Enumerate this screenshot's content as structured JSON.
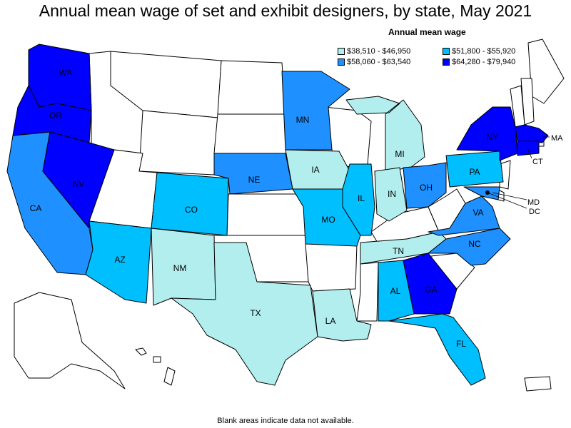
{
  "title": "Annual mean wage of set and exhibit designers, by state, May 2021",
  "legend": {
    "title": "Annual mean wage",
    "bins": [
      {
        "label": "$38,510 - $46,950",
        "color": "#b2eeee"
      },
      {
        "label": "$51,800 - $55,920",
        "color": "#00bfff"
      },
      {
        "label": "$58,060 - $63,540",
        "color": "#1e90ff"
      },
      {
        "label": "$64,280 - $79,940",
        "color": "#0000ff"
      }
    ]
  },
  "footnote": "Blank areas indicate data not available.",
  "states": [
    {
      "code": "WA",
      "bin": 3
    },
    {
      "code": "OR",
      "bin": 3
    },
    {
      "code": "NV",
      "bin": 3
    },
    {
      "code": "NY",
      "bin": 3
    },
    {
      "code": "MA",
      "bin": 3
    },
    {
      "code": "GA",
      "bin": 3
    },
    {
      "code": "CT",
      "bin": 3
    },
    {
      "code": "CA",
      "bin": 2
    },
    {
      "code": "MN",
      "bin": 2
    },
    {
      "code": "NE",
      "bin": 2
    },
    {
      "code": "OH",
      "bin": 2
    },
    {
      "code": "VA",
      "bin": 2
    },
    {
      "code": "NC",
      "bin": 2
    },
    {
      "code": "MD",
      "bin": 2
    },
    {
      "code": "CO",
      "bin": 1
    },
    {
      "code": "AZ",
      "bin": 1
    },
    {
      "code": "IL",
      "bin": 1
    },
    {
      "code": "MO",
      "bin": 1
    },
    {
      "code": "PA",
      "bin": 1
    },
    {
      "code": "AL",
      "bin": 1
    },
    {
      "code": "FL",
      "bin": 1
    },
    {
      "code": "DC",
      "bin": 1
    },
    {
      "code": "NM",
      "bin": 0
    },
    {
      "code": "TX",
      "bin": 0
    },
    {
      "code": "LA",
      "bin": 0
    },
    {
      "code": "IA",
      "bin": 0
    },
    {
      "code": "MI",
      "bin": 0
    },
    {
      "code": "IN",
      "bin": 0
    },
    {
      "code": "TN",
      "bin": 0
    }
  ]
}
